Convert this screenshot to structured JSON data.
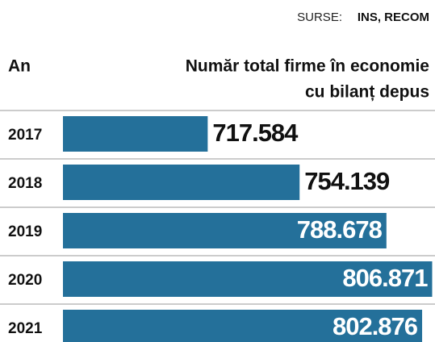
{
  "chart_data": {
    "type": "bar",
    "orientation": "horizontal",
    "source_label": "SURSE:",
    "source": "INS, RECOM",
    "category_header": "An",
    "value_header": [
      "Număr total firme în economie",
      "cu bilanț depus"
    ],
    "categories": [
      "2017",
      "2018",
      "2019",
      "2020",
      "2021"
    ],
    "values": [
      717584,
      754139,
      788678,
      806871,
      802876
    ],
    "value_labels": [
      "717.584",
      "754.139",
      "788.678",
      "806.871",
      "802.876"
    ],
    "color": "#24709a",
    "xlim": [
      660000,
      808000
    ]
  }
}
